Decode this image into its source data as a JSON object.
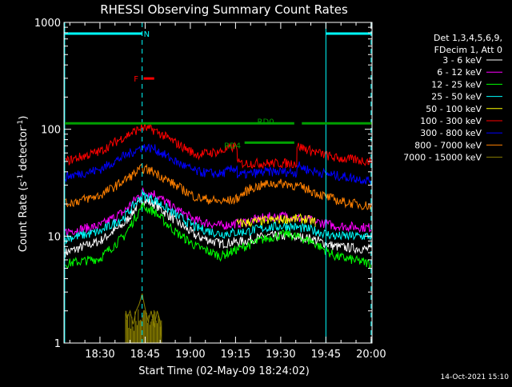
{
  "chart_data": {
    "type": "line",
    "title": "RHESSI Observing Summary Count Rates",
    "xlabel": "Start Time (02-May-09 18:24:02)",
    "ylabel_main": "Count Rate (s",
    "ylabel_sup1": "-1",
    "ylabel_mid": " detector",
    "ylabel_sup2": "-1",
    "ylabel_end": ")",
    "footer_date": "14-Oct-2021 15:10",
    "yscale": "log",
    "ylim": [
      1,
      1000
    ],
    "xlim_minutes": [
      18.066,
      120.3
    ],
    "x_ticks": [
      {
        "m": 30,
        "label": "18:30"
      },
      {
        "m": 45,
        "label": "18:45"
      },
      {
        "m": 60,
        "label": "19:00"
      },
      {
        "m": 75,
        "label": "19:15"
      },
      {
        "m": 90,
        "label": "19:30"
      },
      {
        "m": 105,
        "label": "19:45"
      },
      {
        "m": 120,
        "label": "20:00"
      }
    ],
    "y_ticks": [
      {
        "v": 1,
        "label": "1"
      },
      {
        "v": 10,
        "label": "10"
      },
      {
        "v": 100,
        "label": "100"
      },
      {
        "v": 1000,
        "label": "1000"
      }
    ],
    "legend_header": [
      "Det 1,3,4,5,6,9,",
      "FDecim 1, Att 0"
    ],
    "legend_position": "right",
    "series": [
      {
        "name": "3 - 6 keV",
        "color": "#ffffff",
        "points": [
          [
            18.5,
            7
          ],
          [
            30,
            9
          ],
          [
            38,
            13
          ],
          [
            44,
            22
          ],
          [
            48,
            20
          ],
          [
            55,
            14
          ],
          [
            62,
            10
          ],
          [
            70,
            8.5
          ],
          [
            78,
            9
          ],
          [
            85,
            10
          ],
          [
            92,
            10
          ],
          [
            100,
            9.5
          ],
          [
            108,
            8
          ],
          [
            120,
            7.5
          ]
        ]
      },
      {
        "name": "6 - 12 keV",
        "color": "#ff00ff",
        "points": [
          [
            18.5,
            11
          ],
          [
            30,
            12.5
          ],
          [
            38,
            17
          ],
          [
            44,
            26
          ],
          [
            48,
            25
          ],
          [
            55,
            18
          ],
          [
            62,
            14
          ],
          [
            70,
            12.5
          ],
          [
            78,
            13.5
          ],
          [
            85,
            15
          ],
          [
            92,
            15.5
          ],
          [
            100,
            14
          ],
          [
            108,
            12.5
          ],
          [
            120,
            12
          ]
        ]
      },
      {
        "name": "12 - 25 keV",
        "color": "#00ff00",
        "points": [
          [
            18.5,
            5.5
          ],
          [
            30,
            6.2
          ],
          [
            38,
            10
          ],
          [
            44,
            19
          ],
          [
            48,
            17
          ],
          [
            55,
            11
          ],
          [
            62,
            8
          ],
          [
            70,
            6.5
          ],
          [
            78,
            8
          ],
          [
            85,
            9.5
          ],
          [
            92,
            10.5
          ],
          [
            100,
            9
          ],
          [
            108,
            6.5
          ],
          [
            120,
            5.5
          ]
        ]
      },
      {
        "name": "25 - 50 keV",
        "color": "#00ffff",
        "points": [
          [
            18.5,
            9.5
          ],
          [
            30,
            11
          ],
          [
            38,
            15
          ],
          [
            44,
            24
          ],
          [
            48,
            22
          ],
          [
            55,
            16
          ],
          [
            62,
            12
          ],
          [
            70,
            10.5
          ],
          [
            78,
            11
          ],
          [
            85,
            12
          ],
          [
            92,
            12.5
          ],
          [
            100,
            11.5
          ],
          [
            108,
            10
          ],
          [
            120,
            10
          ]
        ]
      },
      {
        "name": "50 - 100 keV",
        "color": "#ffff00",
        "points": [
          [
            75.5,
            13
          ],
          [
            80,
            13.5
          ],
          [
            85,
            14
          ],
          [
            92,
            14.5
          ],
          [
            98,
            14.5
          ],
          [
            101.5,
            13.5
          ]
        ]
      },
      {
        "name": "100 - 300 keV",
        "color": "#ff0000",
        "points": [
          [
            18.5,
            50
          ],
          [
            30,
            62
          ],
          [
            38,
            85
          ],
          [
            44,
            104
          ],
          [
            48,
            98
          ],
          [
            55,
            75
          ],
          [
            62,
            58
          ],
          [
            70,
            62
          ],
          [
            75.5,
            70
          ],
          [
            75.6,
            48
          ],
          [
            85,
            48
          ],
          [
            93,
            48
          ],
          [
            95.3,
            48
          ],
          [
            95.4,
            70
          ],
          [
            100,
            63
          ],
          [
            108,
            54
          ],
          [
            120,
            50
          ]
        ]
      },
      {
        "name": "300 - 800 keV",
        "color": "#0000ff",
        "points": [
          [
            18.5,
            36
          ],
          [
            30,
            42
          ],
          [
            38,
            56
          ],
          [
            44,
            68
          ],
          [
            48,
            66
          ],
          [
            55,
            50
          ],
          [
            62,
            40
          ],
          [
            70,
            38
          ],
          [
            75.5,
            44
          ],
          [
            75.6,
            37
          ],
          [
            85,
            40
          ],
          [
            93,
            40
          ],
          [
            95.3,
            39
          ],
          [
            95.4,
            46
          ],
          [
            100,
            41
          ],
          [
            108,
            37
          ],
          [
            120,
            33
          ]
        ]
      },
      {
        "name": "800 - 7000 keV",
        "color": "#ff8000",
        "points": [
          [
            18.5,
            20
          ],
          [
            30,
            24
          ],
          [
            38,
            33
          ],
          [
            44,
            43
          ],
          [
            48,
            40
          ],
          [
            55,
            30
          ],
          [
            62,
            23
          ],
          [
            70,
            21
          ],
          [
            75,
            22
          ],
          [
            80,
            28
          ],
          [
            86,
            31
          ],
          [
            92,
            31
          ],
          [
            98,
            28
          ],
          [
            104,
            24
          ],
          [
            110,
            21
          ],
          [
            120,
            19
          ]
        ]
      },
      {
        "name": "7000 - 15000 keV",
        "color": "#8b8000",
        "points": [
          [
            38.5,
            1
          ],
          [
            38.6,
            2
          ],
          [
            39,
            1.7
          ],
          [
            40,
            2
          ],
          [
            41,
            1.5
          ],
          [
            42,
            2
          ],
          [
            43,
            2.3
          ],
          [
            44,
            2.9
          ],
          [
            45,
            2.1
          ],
          [
            46,
            1.6
          ],
          [
            47,
            2
          ],
          [
            48,
            1.4
          ],
          [
            49,
            2
          ],
          [
            50,
            1.6
          ],
          [
            50.5,
            1
          ]
        ]
      }
    ],
    "markers": {
      "vertical_solid_minutes": [
        18.3,
        105
      ],
      "vertical_dashed_minutes": [
        44,
        120
      ],
      "bars": [
        {
          "label": "N",
          "color": "#00ffff",
          "m0": 18.3,
          "m1": 44,
          "y": 1.0,
          "label_at": 45.5,
          "label_dy": 0
        },
        {
          "label": "",
          "color": "#00ffff",
          "m0": 105,
          "m1": 120.3,
          "y": 1.0
        },
        {
          "label": "F",
          "color": "#ff0000",
          "m0": 44.5,
          "m1": 48,
          "y": 0.86,
          "label_at": 42,
          "label_dy": 0
        },
        {
          "label": "RD0",
          "color": "#00a000",
          "m0": 18.3,
          "m1": 120.3,
          "y": 0.72,
          "gap": [
            94.5,
            97
          ],
          "label_at": 85,
          "label_dy": -3
        },
        {
          "label": "RD4",
          "color": "#00a000",
          "m0": 78,
          "m1": 94.5,
          "y": 0.66,
          "label_at": 74,
          "label_dy": 3
        }
      ]
    }
  }
}
